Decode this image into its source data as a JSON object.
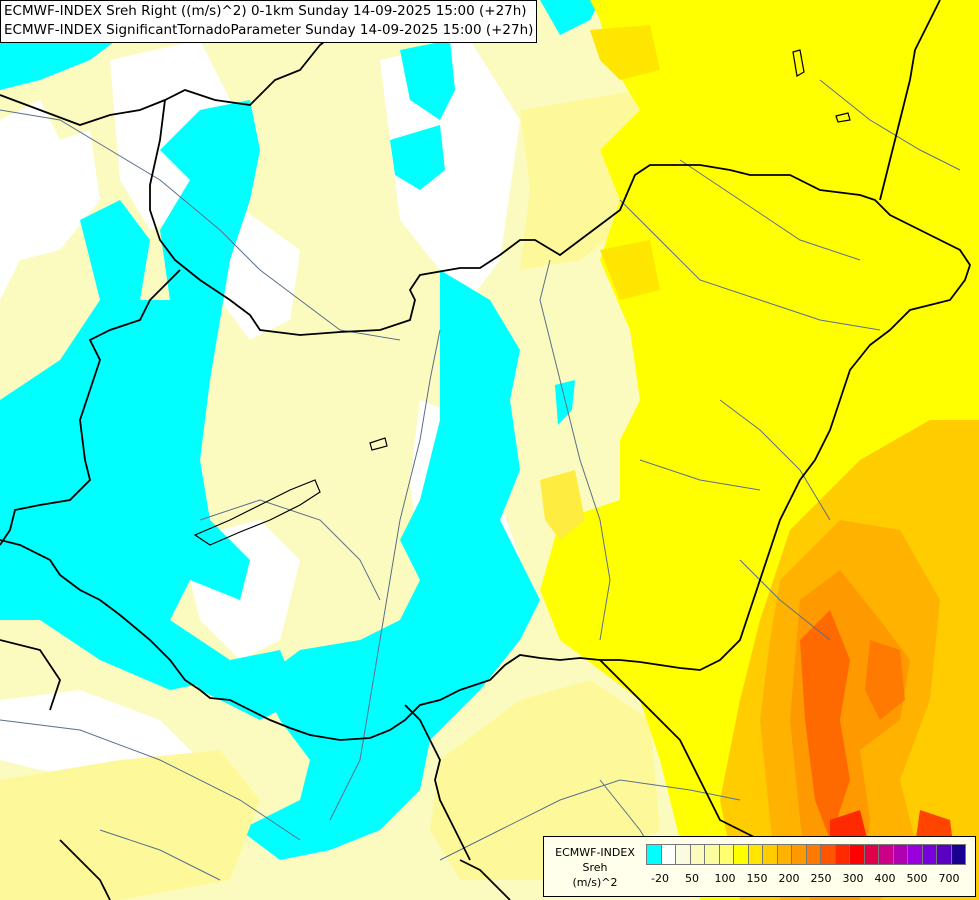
{
  "header": {
    "line1": "ECMWF-INDEX Sreh Right ((m/s)^2) 0-1km Sunday 14-09-2025 15:00 (+27h)",
    "line2": "ECMWF-INDEX SignificantTornadoParameter Sunday 14-09-2025 15:00 (+27h)"
  },
  "legend": {
    "line1": "ECMWF-INDEX",
    "line2": "Sreh",
    "line3": "(m/s)^2",
    "swatch_colors": [
      "#00ffff",
      "#ffffff",
      "#fbfbe0",
      "#fbfbc0",
      "#fbfba0",
      "#ffff70",
      "#ffff00",
      "#ffe600",
      "#ffcc00",
      "#ffb300",
      "#ff9900",
      "#ff7a00",
      "#ff5500",
      "#ff2a00",
      "#ff0000",
      "#e0004a",
      "#cc0088",
      "#b000b0",
      "#9900dd",
      "#7700dd",
      "#5a00c0",
      "#1a0090"
    ],
    "tick_labels": [
      "-20",
      "50",
      "100",
      "150",
      "200",
      "250",
      "300",
      "400",
      "500",
      "700"
    ]
  },
  "colors": {
    "cyan": "#00ffff",
    "pale": "#fbfbc0",
    "light_yellow": "#fdf99a",
    "yellow": "#ffff00",
    "gold": "#ffcc00",
    "orange": "#ff9900",
    "dark_orange": "#ff6a00",
    "red": "#ff2a00",
    "border_color": "#000000",
    "river_color": "#5a6f8a"
  }
}
